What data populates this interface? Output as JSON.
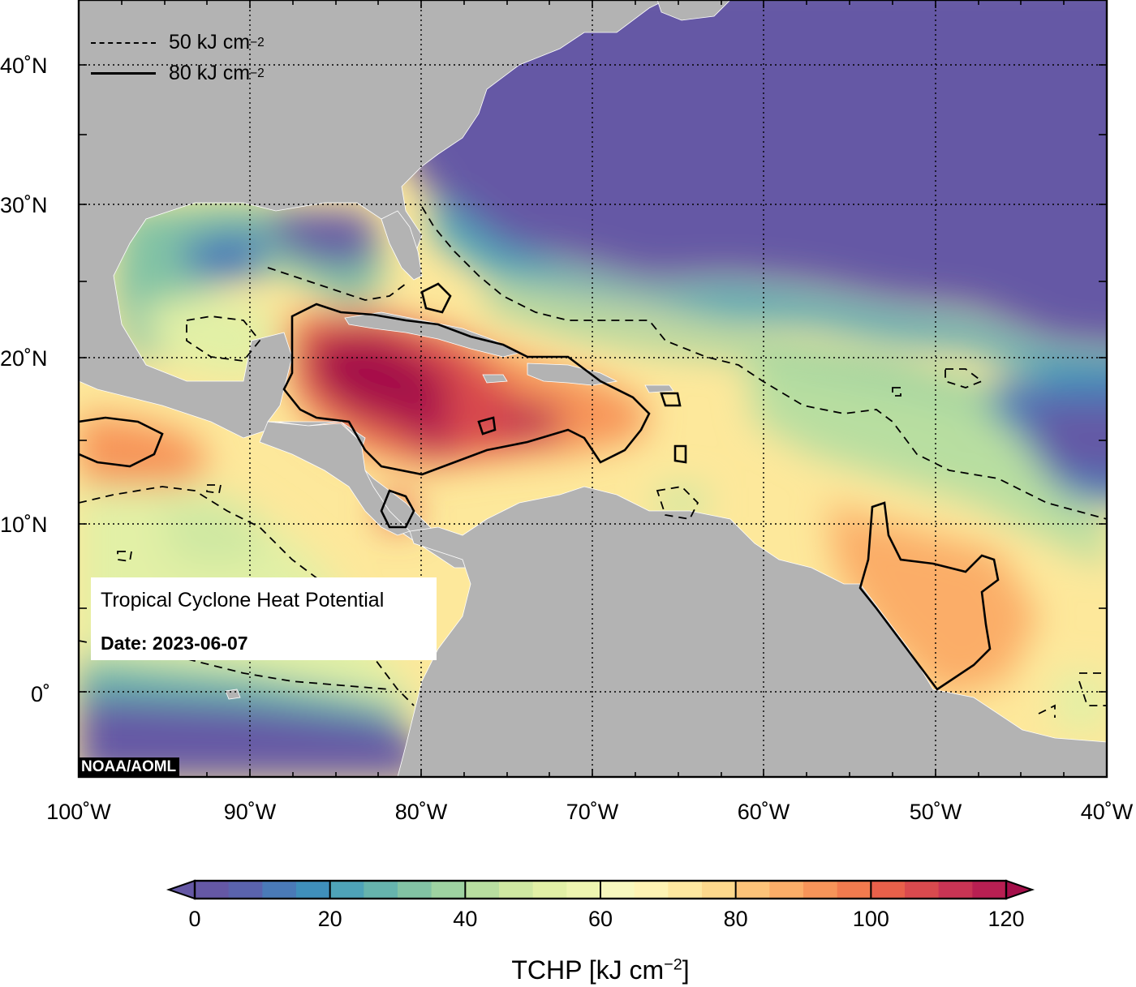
{
  "map": {
    "attribution": "NOAA/AOML",
    "title": "Tropical Cyclone Heat Potential",
    "date_label": "Date: 2023-06-07",
    "extent": {
      "lon": [
        -100,
        -40
      ],
      "lat": [
        -5,
        44
      ]
    },
    "lat_labels": [
      "40˚N",
      "30˚N",
      "20˚N",
      "10˚N",
      "0˚"
    ],
    "lon_labels": [
      "100˚W",
      "90˚W",
      "80˚W",
      "70˚W",
      "60˚W",
      "50˚W",
      "40˚W"
    ],
    "legend": [
      {
        "style": "dashed",
        "text": "50 kJ cm",
        "exp": "−2"
      },
      {
        "style": "solid",
        "text": "80 kJ cm",
        "exp": "−2"
      }
    ],
    "colors": {
      "land": "#b3b3b3",
      "low": "#6558a5",
      "high": "#a50f4a"
    }
  },
  "colorbar": {
    "title": "TCHP [kJ cm",
    "title_exp": "−2",
    "title_close": "]",
    "min": 0,
    "max": 120,
    "step": 5,
    "tick_labels": [
      "0",
      "20",
      "40",
      "60",
      "80",
      "100",
      "120"
    ],
    "palette": [
      "#6558a5",
      "#5a63ad",
      "#4a7ab7",
      "#3f8fbb",
      "#4ea3b8",
      "#66b4ad",
      "#82c3a4",
      "#9ed2a1",
      "#b8dea0",
      "#cfe8a2",
      "#e2f0a6",
      "#eef5b0",
      "#f8f8be",
      "#fef3b4",
      "#fee8a0",
      "#fdd88c",
      "#fcc379",
      "#fbad68",
      "#f79459",
      "#f27b4e",
      "#e8604a",
      "#d94a4e",
      "#c93454",
      "#b81f52"
    ]
  }
}
